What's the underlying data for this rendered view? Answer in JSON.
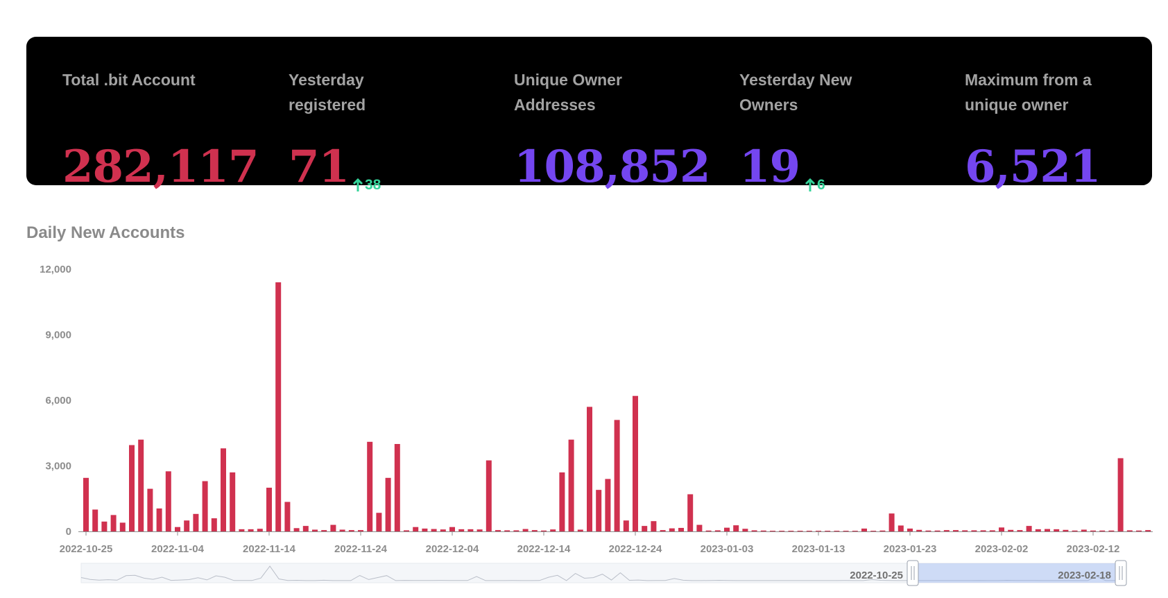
{
  "stats": [
    {
      "label": "Total .bit Account",
      "value": "282,117",
      "color": "#d0314f"
    },
    {
      "label": "Yesterday registered",
      "value": "71",
      "delta": "38",
      "color": "#d0314f"
    },
    {
      "label": "Unique Owner Addresses",
      "value": "108,852",
      "color": "#7446f0"
    },
    {
      "label": "Yesterday New Owners",
      "value": "19",
      "delta": "6",
      "color": "#7446f0"
    },
    {
      "label": "Maximum from a unique owner",
      "value": "6,521",
      "color": "#7446f0"
    }
  ],
  "chart_title": "Daily New Accounts",
  "chart_data": {
    "type": "bar",
    "title": "Daily New Accounts",
    "bar_color": "#d0314f",
    "ylim": [
      0,
      12000
    ],
    "yticks": [
      0,
      3000,
      6000,
      9000,
      12000
    ],
    "ytick_labels": [
      "0",
      "3,000",
      "6,000",
      "9,000",
      "12,000"
    ],
    "xtick_labels": [
      "2022-10-25",
      "2022-11-04",
      "2022-11-14",
      "2022-11-24",
      "2022-12-04",
      "2022-12-14",
      "2022-12-24",
      "2023-01-03",
      "2023-01-13",
      "2023-01-23",
      "2023-02-02",
      "2023-02-12"
    ],
    "start_date": "2022-10-25",
    "values": [
      2450,
      1000,
      450,
      750,
      400,
      3950,
      4200,
      1950,
      1050,
      2750,
      200,
      500,
      800,
      2300,
      600,
      3800,
      2700,
      100,
      100,
      120,
      2000,
      11400,
      1350,
      150,
      250,
      80,
      60,
      300,
      80,
      60,
      60,
      4100,
      850,
      2450,
      4000,
      50,
      200,
      130,
      110,
      90,
      200,
      100,
      100,
      90,
      3250,
      60,
      50,
      50,
      110,
      60,
      40,
      90,
      2700,
      4200,
      80,
      5700,
      1900,
      2400,
      5100,
      500,
      6200,
      250,
      470,
      60,
      140,
      160,
      1700,
      300,
      40,
      50,
      170,
      280,
      120,
      50,
      40,
      30,
      30,
      30,
      30,
      30,
      30,
      30,
      30,
      30,
      30,
      130,
      30,
      40,
      820,
      270,
      130,
      70,
      40,
      40,
      60,
      60,
      50,
      50,
      50,
      50,
      180,
      70,
      60,
      250,
      100,
      110,
      100,
      70,
      40,
      80,
      40,
      40,
      40,
      3350,
      50,
      40,
      60
    ]
  },
  "zoom": {
    "start_label": "2022-10-25",
    "end_label": "2023-02-18"
  }
}
